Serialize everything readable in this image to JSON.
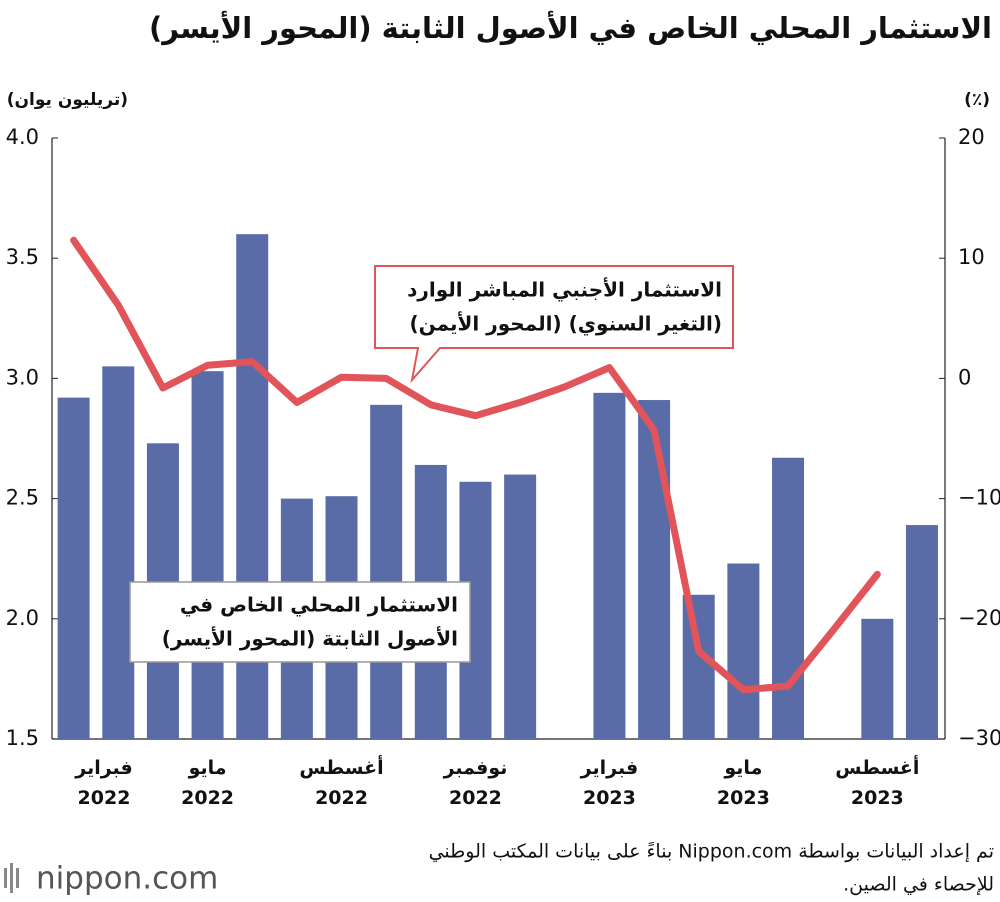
{
  "chart_data": {
    "type": "bar+line",
    "title": "الاستثمار المحلي الخاص في الأصول الثابتة (المحور الأيسر)",
    "y_label": "(تريليون يوان)",
    "y2_label": "(٪)",
    "categories": [
      "فبراير 2022",
      null,
      null,
      "مايو 2022",
      null,
      null,
      "أغسطس 2022",
      null,
      null,
      "نوفمبر 2022",
      null,
      null,
      "فبراير 2023",
      null,
      null,
      "مايو 2023",
      null,
      null,
      "أغسطس 2023",
      null
    ],
    "series": [
      {
        "name": "الاستثمار المحلي الخاص في الأصول الثابتة (المحور الأيسر)",
        "type": "bar",
        "axis": "y",
        "color": "#5a6ca8",
        "values": [
          2.92,
          3.05,
          2.73,
          3.03,
          3.6,
          2.5,
          2.51,
          2.89,
          2.64,
          2.57,
          2.6,
          null,
          2.94,
          2.91,
          2.1,
          2.23,
          2.67,
          null,
          2.0,
          2.39
        ]
      },
      {
        "name": "الاستثمار الأجنبي المباشر الوارد (التغير السنوي) (المحور الأيمن)",
        "type": "line",
        "axis": "y2",
        "color": "#e0545a",
        "values": [
          11.5,
          6.1,
          -0.8,
          1.1,
          1.4,
          -2.0,
          0.1,
          0.0,
          -2.2,
          -3.1,
          -2.0,
          -0.7,
          0.9,
          -4.3,
          -22.7,
          -25.9,
          -25.6,
          -21.0,
          -16.3,
          null
        ]
      }
    ],
    "annotations": [
      [
        "الاستثمار الأجنبي المباشر الوارد",
        "(التغير السنوي) (المحور الأيمن)"
      ],
      [
        "الاستثمار المحلي الخاص في",
        "الأصول الثابتة (المحور الأيسر)"
      ]
    ],
    "ylim": [
      1.5,
      4.0
    ],
    "yticks": [
      {
        "value": 1.5,
        "label": "1.5"
      },
      {
        "value": 2.0,
        "label": "2.0"
      },
      {
        "value": 2.5,
        "label": "2.5"
      },
      {
        "value": 3.0,
        "label": "3.0"
      },
      {
        "value": 3.5,
        "label": "3.5"
      },
      {
        "value": 4.0,
        "label": "4.0"
      }
    ],
    "y2lim": [
      -30,
      20
    ],
    "y2ticks": [
      {
        "value": -30,
        "label": "−30"
      },
      {
        "value": -20,
        "label": "−20"
      },
      {
        "value": -10,
        "label": "−10"
      },
      0,
      10,
      20
    ],
    "source": [
      "تم إعداد البيانات بواسطة Nippon.com بناءً على بيانات المكتب الوطني",
      "للإحصاء في الصين."
    ],
    "logo": "nippon.com"
  }
}
